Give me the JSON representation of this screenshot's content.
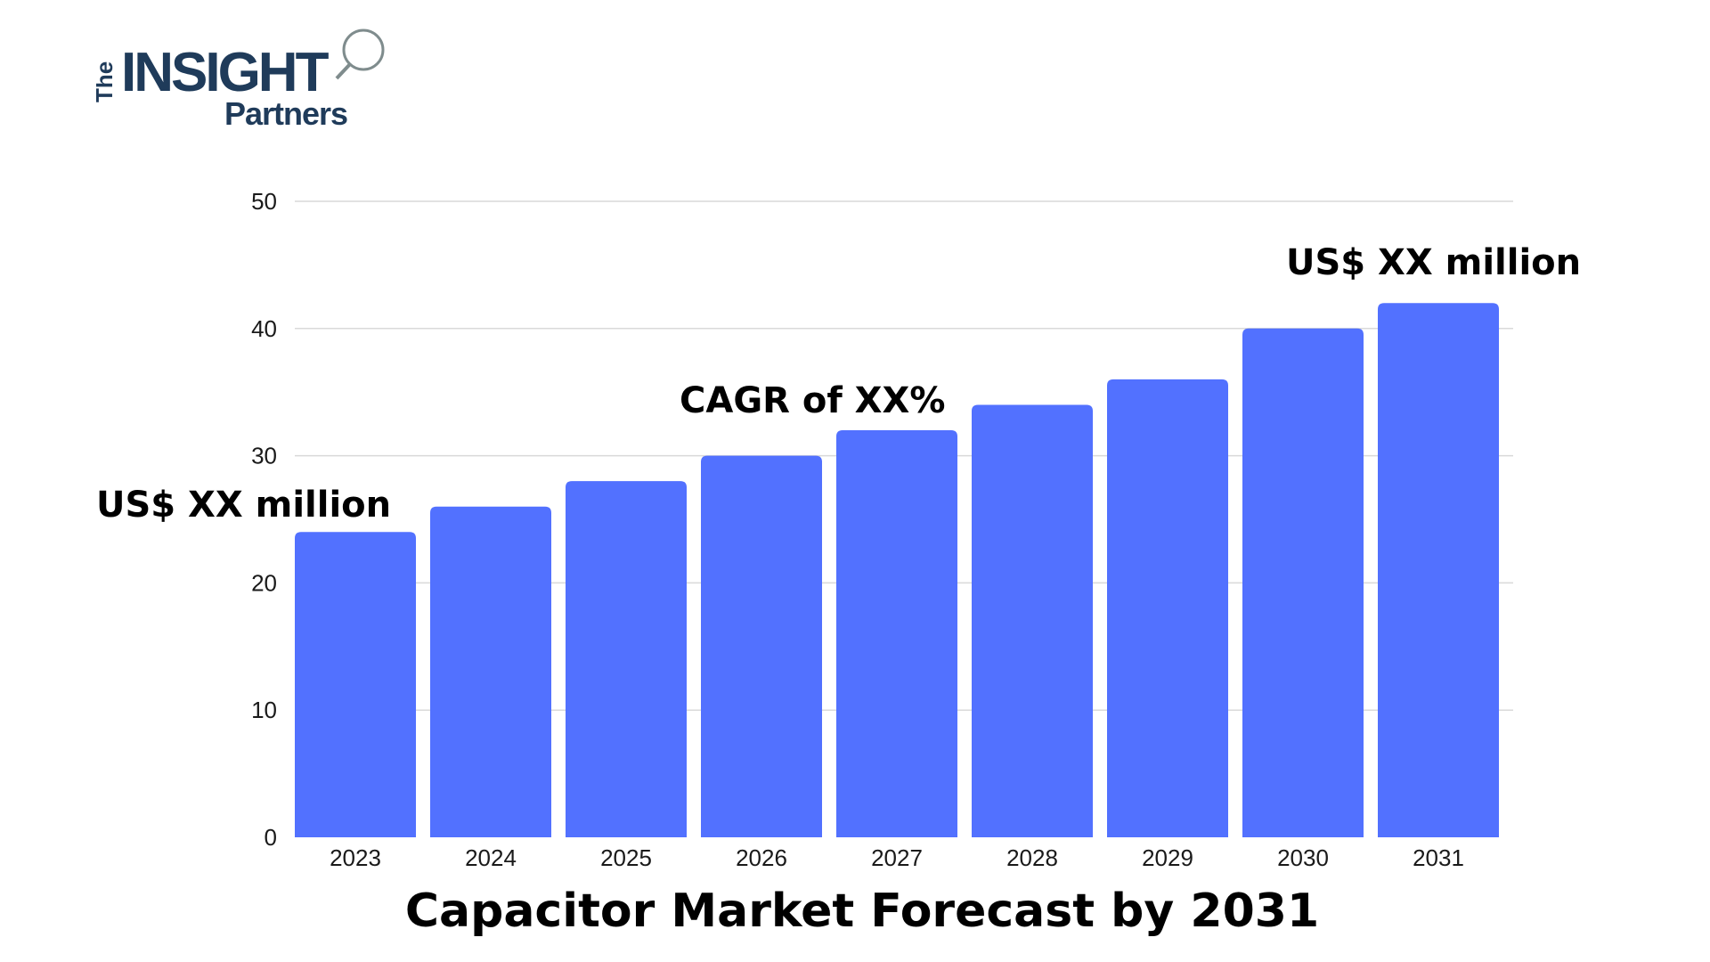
{
  "logo": {
    "the": "The",
    "insight": "INSIGHT",
    "partners": "Partners",
    "brand_color": "#1f3b5a",
    "accent_color": "#2e86c1"
  },
  "colors": {
    "bar": "#5271ff",
    "grid": "#d9d9d9",
    "text": "#000000"
  },
  "chart_data": {
    "type": "bar",
    "categories": [
      "2023",
      "2024",
      "2025",
      "2026",
      "2027",
      "2028",
      "2029",
      "2030",
      "2031"
    ],
    "values": [
      24,
      26,
      28,
      30,
      32,
      34,
      36,
      40,
      42
    ],
    "yticks": [
      0,
      10,
      20,
      30,
      40,
      50
    ],
    "ylim": [
      0,
      50
    ],
    "grid": true,
    "title": "Capacitor Market Forecast by 2031",
    "annotations": {
      "start": "US$ XX million",
      "cagr": "CAGR of XX%",
      "end": "US$ XX million"
    }
  }
}
